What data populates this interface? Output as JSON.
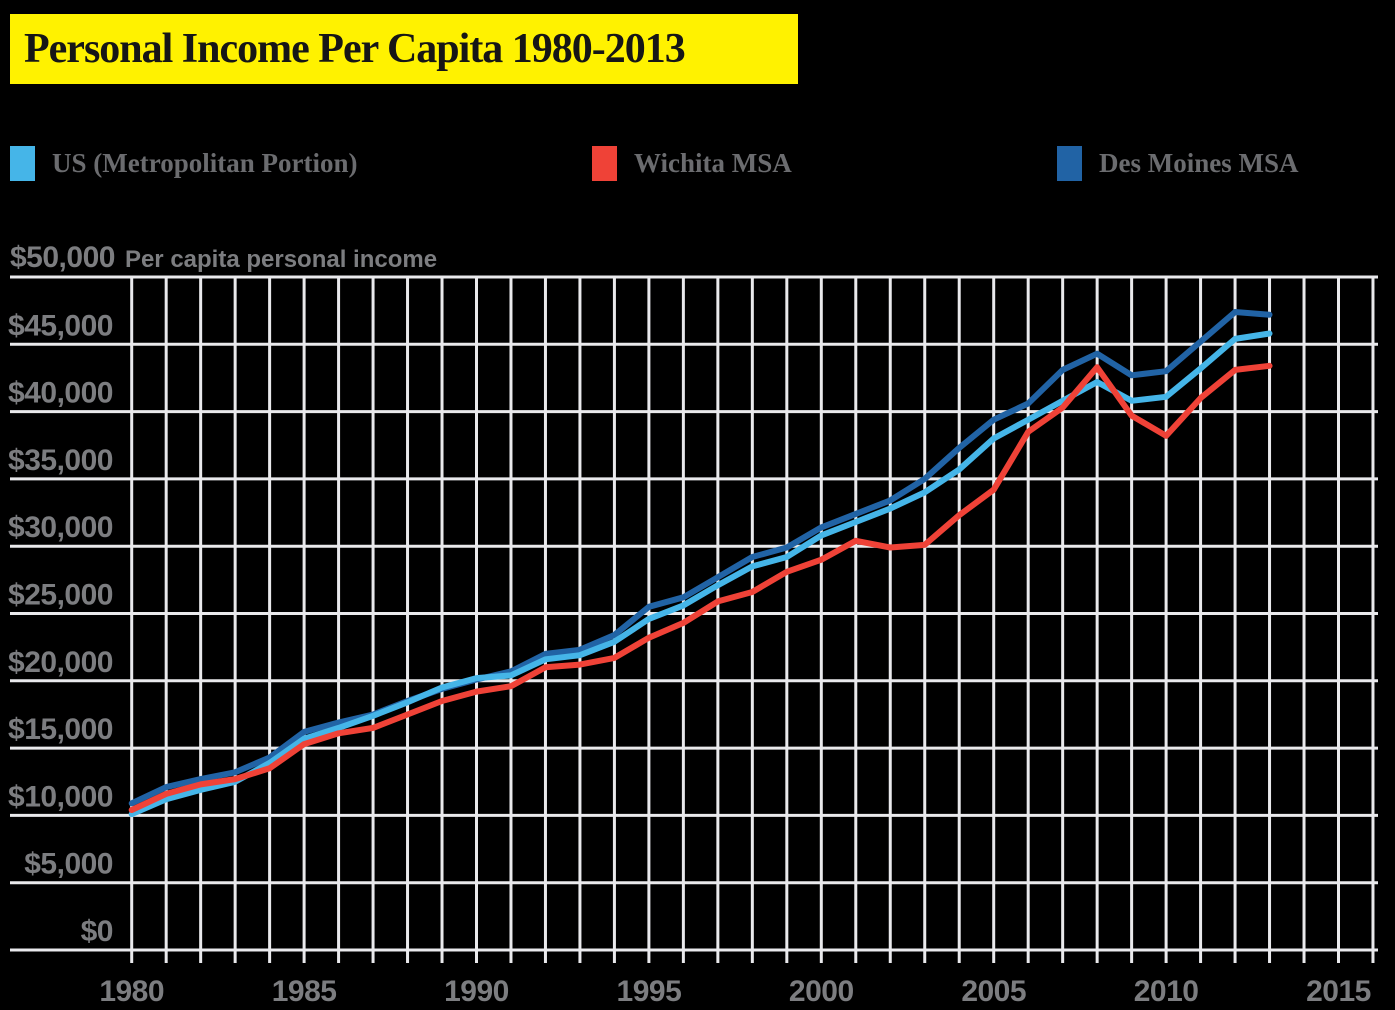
{
  "title": {
    "text": "Personal Income Per Capita 1980-2013",
    "background_color": "#FFF200",
    "text_color": "#161616"
  },
  "legend": {
    "items": [
      {
        "label": "US (Metropolitan Portion)",
        "color": "#45B5E8"
      },
      {
        "label": "Wichita MSA",
        "color": "#EF4237"
      },
      {
        "label": "Des Moines MSA",
        "color": "#2163A5"
      }
    ]
  },
  "axis_header": {
    "value_label": "$50,000",
    "caption": "Per capita personal income"
  },
  "chart_data": {
    "type": "line",
    "title": "Personal Income Per Capita 1980-2013",
    "ylabel": "Per capita personal income",
    "xlabel": "",
    "ylim": [
      0,
      50000
    ],
    "y_tick_step": 5000,
    "grid": true,
    "legend_position": "top",
    "background_color": "#000000",
    "grid_color": "#E9E9EC",
    "axis_text_color": "#7C7D80",
    "y_tick_labels": [
      "$0",
      "$5,000",
      "$10,000",
      "$15,000",
      "$20,000",
      "$25,000",
      "$30,000",
      "$35,000",
      "$40,000",
      "$45,000",
      "$50,000"
    ],
    "x_tick_labels": [
      "1980",
      "1985",
      "1990",
      "1995",
      "2000",
      "2005",
      "2010",
      "2015"
    ],
    "x_minor_ticks_every_year": true,
    "x_grid_years": [
      1980,
      2016
    ],
    "x": [
      1980,
      1981,
      1982,
      1983,
      1984,
      1985,
      1986,
      1987,
      1988,
      1989,
      1990,
      1991,
      1992,
      1993,
      1994,
      1995,
      1996,
      1997,
      1998,
      1999,
      2000,
      2001,
      2002,
      2003,
      2004,
      2005,
      2006,
      2007,
      2008,
      2009,
      2010,
      2011,
      2012,
      2013
    ],
    "series": [
      {
        "name": "US (Metropolitan Portion)",
        "color": "#45B5E8",
        "values": [
          10100,
          11200,
          11900,
          12500,
          13900,
          15700,
          16500,
          17400,
          18400,
          19500,
          20200,
          20400,
          21600,
          21900,
          22900,
          24600,
          25600,
          27100,
          28500,
          29200,
          30800,
          31800,
          32800,
          34000,
          35700,
          38000,
          39400,
          40800,
          42200,
          40800,
          41100,
          43200,
          45400,
          45800
        ]
      },
      {
        "name": "Wichita MSA",
        "color": "#EF4237",
        "values": [
          10400,
          11600,
          12300,
          12700,
          13500,
          15300,
          16100,
          16500,
          17500,
          18500,
          19200,
          19600,
          21000,
          21200,
          21700,
          23200,
          24300,
          25900,
          26600,
          28100,
          29000,
          30400,
          29900,
          30100,
          32300,
          34200,
          38500,
          40300,
          43300,
          39700,
          38200,
          41000,
          43100,
          43400
        ]
      },
      {
        "name": "Des Moines MSA",
        "color": "#2163A5",
        "values": [
          10900,
          12100,
          12700,
          13200,
          14300,
          16200,
          16900,
          17500,
          18500,
          19400,
          20100,
          20700,
          22000,
          22300,
          23400,
          25500,
          26200,
          27700,
          29200,
          29900,
          31400,
          32400,
          33400,
          35000,
          37300,
          39400,
          40600,
          43100,
          44300,
          42700,
          43000,
          45200,
          47400,
          47200
        ]
      }
    ]
  }
}
